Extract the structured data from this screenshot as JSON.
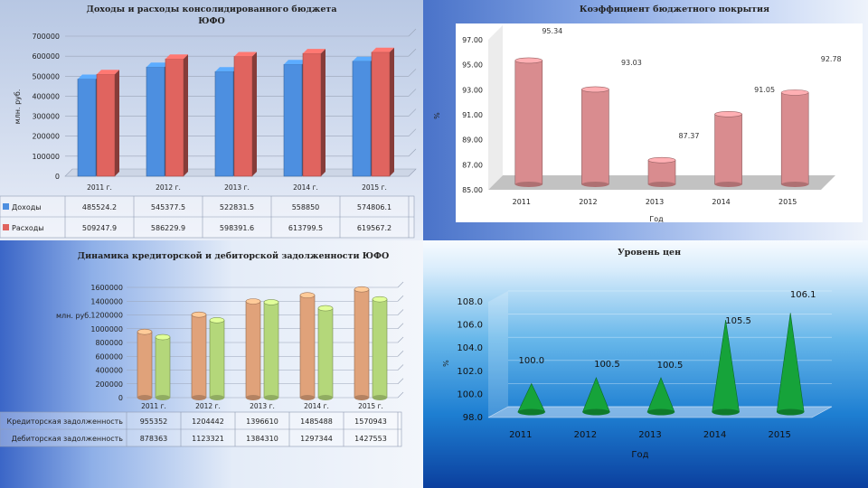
{
  "colors": {
    "income": "#e0645f",
    "blue": "#4d8fe0",
    "pink": "#d98c8f",
    "salmon": "#e0a27a",
    "green": "#b4d77a",
    "cone": "#16a33a"
  },
  "chart_data": [
    {
      "id": "budget",
      "type": "bar",
      "title": "Доходы и расходы консолидированного бюджета ЮФО",
      "ylabel": "млн. руб.",
      "ylim": [
        0,
        700000
      ],
      "yticks": [
        "700000",
        "600000",
        "500000",
        "400000",
        "300000",
        "200000",
        "100000",
        "0"
      ],
      "categories": [
        "2011 г.",
        "2012 г.",
        "2013 г.",
        "2014 г.",
        "2015 г."
      ],
      "series": [
        {
          "name": "Доходы",
          "values": [
            485524.2,
            545377.5,
            522831.5,
            558850,
            574806.1
          ],
          "labels": [
            "485524.2",
            "545377.5",
            "522831.5",
            "558850",
            "574806.1"
          ]
        },
        {
          "name": "Расходы",
          "values": [
            509247.9,
            586229.9,
            598391.6,
            613799.5,
            619567.2
          ],
          "labels": [
            "509247.9",
            "586229.9",
            "598391.6",
            "613799.5",
            "619567.2"
          ]
        }
      ]
    },
    {
      "id": "coverage",
      "type": "bar",
      "title": "Коэффициент бюджетного покрытия",
      "ylabel": "%",
      "xlabel": "Год",
      "ylim": [
        85,
        97
      ],
      "yticks": [
        "97.00",
        "95.00",
        "93.00",
        "91.00",
        "89.00",
        "87.00",
        "85.00"
      ],
      "categories": [
        "2011",
        "2012",
        "2013",
        "2014",
        "2015"
      ],
      "values": [
        95.34,
        93.03,
        87.37,
        91.05,
        92.78
      ],
      "labels": [
        "95.34",
        "93.03",
        "87.37",
        "91.05",
        "92.78"
      ]
    },
    {
      "id": "debt",
      "type": "bar",
      "title": "Динамика кредиторской и дебиторской задолженности ЮФО",
      "ylabel": "млн. руб.",
      "ylim": [
        0,
        1600000
      ],
      "yticks": [
        "1600000",
        "1400000",
        "1200000",
        "1000000",
        "800000",
        "600000",
        "400000",
        "200000",
        "0"
      ],
      "categories": [
        "2011 г.",
        "2012 г.",
        "2013 г.",
        "2014 г.",
        "2015 г."
      ],
      "series": [
        {
          "name": "Кредиторская задолженность",
          "values": [
            955352,
            1204442,
            1396610,
            1485488,
            1570943
          ],
          "labels": [
            "955352",
            "1204442",
            "1396610",
            "1485488",
            "1570943"
          ]
        },
        {
          "name": "Дебиторская задолженность",
          "values": [
            878363,
            1123321,
            1384310,
            1297344,
            1427553
          ],
          "labels": [
            "878363",
            "1123321",
            "1384310",
            "1297344",
            "1427553"
          ]
        }
      ]
    },
    {
      "id": "prices",
      "type": "bar",
      "title": "Уровень цен",
      "ylabel": "%",
      "xlabel": "Год",
      "ylim": [
        98,
        108
      ],
      "yticks": [
        "108.0",
        "106.0",
        "104.0",
        "102.0",
        "100.0",
        "98.0"
      ],
      "categories": [
        "2011",
        "2012",
        "2013",
        "2014",
        "2015"
      ],
      "values": [
        100.0,
        100.5,
        100.5,
        105.5,
        106.1
      ],
      "labels": [
        "100.0",
        "100.5",
        "100.5",
        "105.5",
        "106.1"
      ]
    }
  ]
}
